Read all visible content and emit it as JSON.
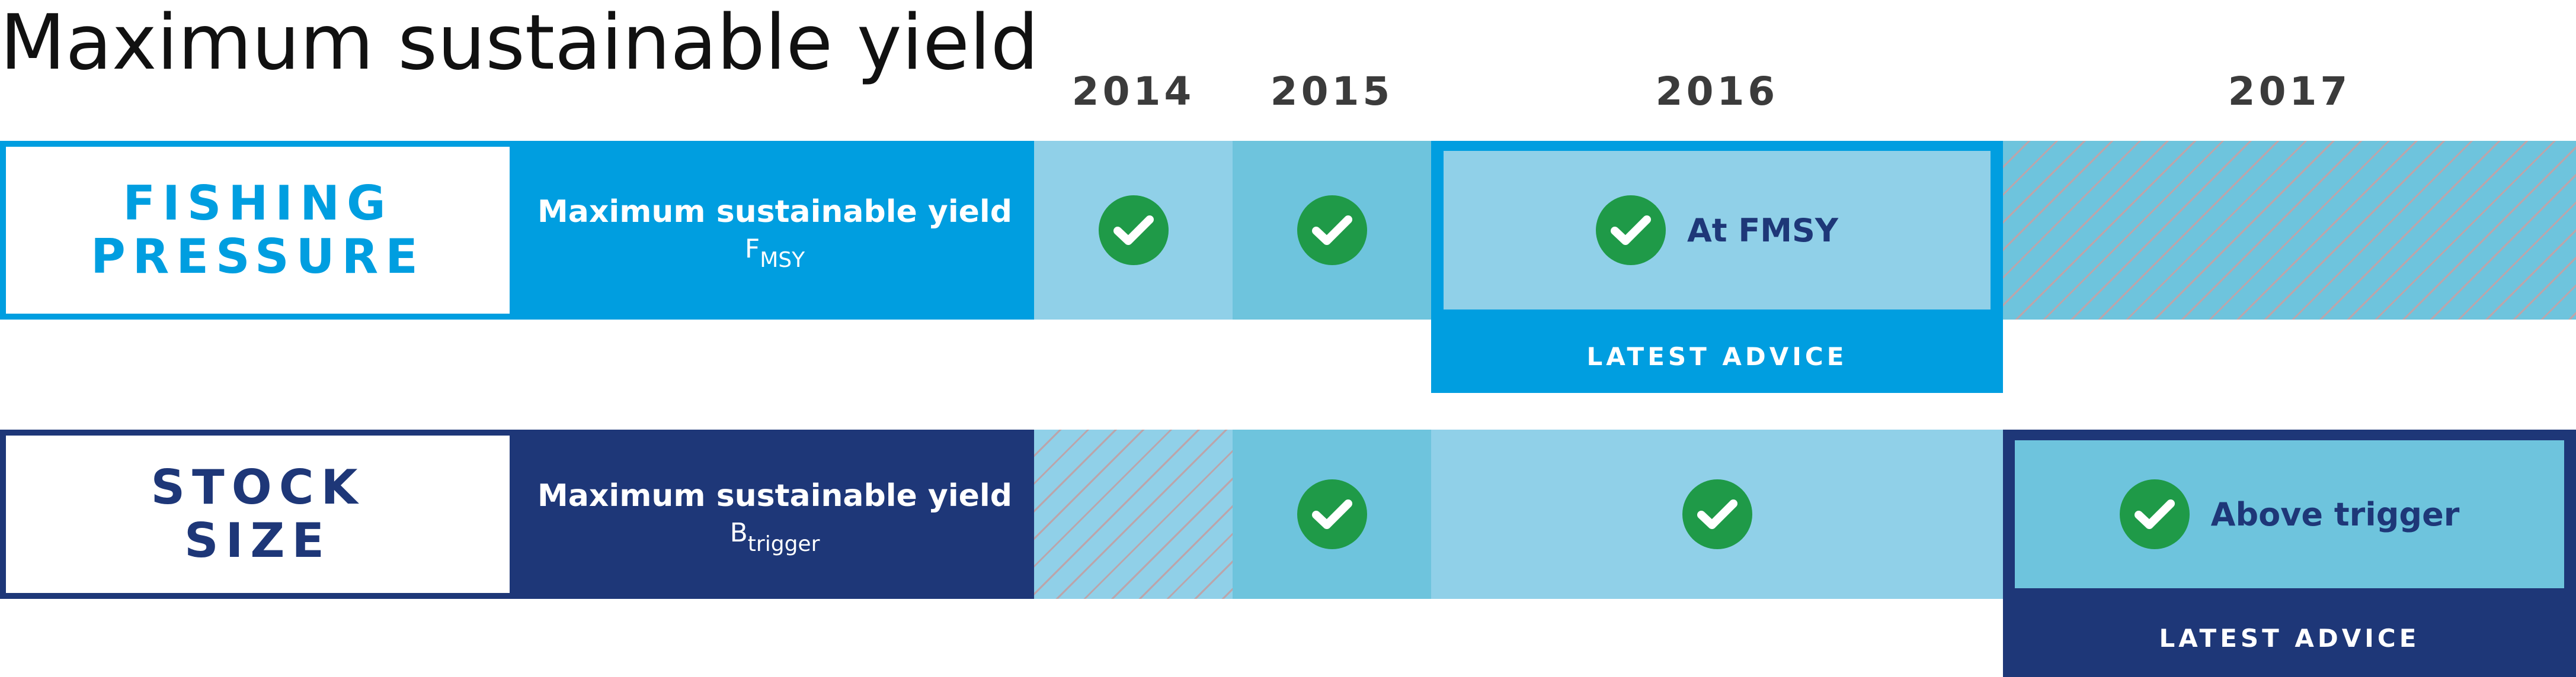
{
  "title": "Maximum sustainable yield",
  "years": [
    "2014",
    "2015",
    "2016",
    "2017"
  ],
  "colors": {
    "light_blue": "#009ee0",
    "dark_navy": "#1e3778",
    "cell_pale": "#90d0e8",
    "cell_mid": "#6ec4dd",
    "check_green": "#1f9a48",
    "hatch_line": "#bba5ab"
  },
  "rows": [
    {
      "label_line1": "FISHING",
      "label_line2": "PRESSURE",
      "reference_title": "Maximum sustainable yield",
      "reference_symbol": "F",
      "reference_subscript": "MSY",
      "cells": [
        {
          "year": "2014",
          "status": "check"
        },
        {
          "year": "2015",
          "status": "check"
        },
        {
          "year": "2016",
          "status": "check",
          "text": "At FMSY",
          "latest": true
        },
        {
          "year": "2017",
          "status": "no-data"
        }
      ],
      "latest_advice": "LATEST ADVICE"
    },
    {
      "label_line1": "STOCK",
      "label_line2": "SIZE",
      "reference_title": "Maximum sustainable yield",
      "reference_symbol": "B",
      "reference_subscript": "trigger",
      "cells": [
        {
          "year": "2014",
          "status": "no-data"
        },
        {
          "year": "2015",
          "status": "check"
        },
        {
          "year": "2016",
          "status": "check"
        },
        {
          "year": "2017",
          "status": "check",
          "text": "Above trigger",
          "latest": true
        }
      ],
      "latest_advice": "LATEST ADVICE"
    }
  ]
}
